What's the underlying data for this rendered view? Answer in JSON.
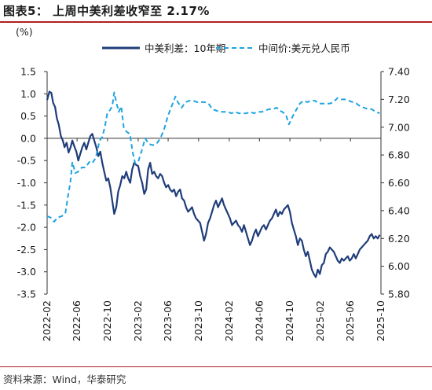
{
  "header": {
    "title": "图表5：  上周中美利差收窄至 2.17%"
  },
  "source": {
    "text": "资料来源：Wind，华泰研究"
  },
  "colors": {
    "accent_red": "#b21e24",
    "spread_line": "#1f3d7a",
    "fx_line": "#1fa3e0"
  },
  "chart_data": {
    "type": "line",
    "left_axis": {
      "unit_label": "(%)",
      "ylim": [
        -3.5,
        1.5
      ],
      "ticks": [
        "1.5",
        "1.0",
        "0.5",
        "0.0",
        "-0.5",
        "-1.0",
        "-1.5",
        "-2.0",
        "-2.5",
        "-3.0",
        "-3.5"
      ]
    },
    "right_axis": {
      "ylim": [
        5.8,
        7.4
      ],
      "ticks": [
        "7.40",
        "7.20",
        "7.00",
        "6.80",
        "6.60",
        "6.40",
        "6.20",
        "6.00",
        "5.80"
      ]
    },
    "x_axis": {
      "range": [
        "2022-02",
        "2025-10"
      ],
      "tick_labels": [
        "2022-02",
        "2022-06",
        "2022-10",
        "2023-02",
        "2023-06",
        "2023-10",
        "2024-02",
        "2024-06",
        "2024-10",
        "2025-02",
        "2025-06",
        "2025-10"
      ]
    },
    "legend": {
      "placement": "top"
    },
    "grid": false,
    "series": [
      {
        "name": "中美利差：10年期",
        "axis": "left",
        "style": "solid",
        "points": [
          [
            "2022-02-01",
            0.86
          ],
          [
            "2022-02-10",
            1.05
          ],
          [
            "2022-02-18",
            1.02
          ],
          [
            "2022-02-25",
            0.8
          ],
          [
            "2022-03-05",
            0.7
          ],
          [
            "2022-03-12",
            0.45
          ],
          [
            "2022-03-20",
            0.3
          ],
          [
            "2022-03-28",
            0.05
          ],
          [
            "2022-04-05",
            -0.05
          ],
          [
            "2022-04-12",
            -0.2
          ],
          [
            "2022-04-20",
            -0.1
          ],
          [
            "2022-04-28",
            -0.32
          ],
          [
            "2022-05-06",
            -0.2
          ],
          [
            "2022-05-13",
            -0.05
          ],
          [
            "2022-05-21",
            -0.18
          ],
          [
            "2022-05-29",
            -0.3
          ],
          [
            "2022-06-06",
            -0.5
          ],
          [
            "2022-06-14",
            -0.35
          ],
          [
            "2022-06-22",
            -0.2
          ],
          [
            "2022-06-30",
            -0.1
          ],
          [
            "2022-07-08",
            -0.25
          ],
          [
            "2022-07-16",
            -0.1
          ],
          [
            "2022-07-24",
            0.05
          ],
          [
            "2022-08-01",
            0.1
          ],
          [
            "2022-08-09",
            -0.05
          ],
          [
            "2022-08-17",
            -0.2
          ],
          [
            "2022-08-25",
            -0.4
          ],
          [
            "2022-09-02",
            -0.3
          ],
          [
            "2022-09-10",
            -0.55
          ],
          [
            "2022-09-18",
            -0.75
          ],
          [
            "2022-09-26",
            -0.95
          ],
          [
            "2022-10-04",
            -0.9
          ],
          [
            "2022-10-12",
            -1.1
          ],
          [
            "2022-10-20",
            -1.4
          ],
          [
            "2022-10-28",
            -1.7
          ],
          [
            "2022-11-05",
            -1.55
          ],
          [
            "2022-11-13",
            -1.2
          ],
          [
            "2022-11-21",
            -1.05
          ],
          [
            "2022-11-29",
            -0.85
          ],
          [
            "2022-12-07",
            -0.9
          ],
          [
            "2022-12-15",
            -0.75
          ],
          [
            "2022-12-23",
            -0.9
          ],
          [
            "2022-12-31",
            -1.0
          ],
          [
            "2023-01-08",
            -0.7
          ],
          [
            "2023-01-16",
            -0.55
          ],
          [
            "2023-01-24",
            -0.6
          ],
          [
            "2023-02-01",
            -0.62
          ],
          [
            "2023-02-09",
            -0.85
          ],
          [
            "2023-02-17",
            -1.0
          ],
          [
            "2023-02-25",
            -1.25
          ],
          [
            "2023-03-05",
            -1.15
          ],
          [
            "2023-03-13",
            -0.7
          ],
          [
            "2023-03-21",
            -0.55
          ],
          [
            "2023-03-29",
            -0.8
          ],
          [
            "2023-04-06",
            -0.75
          ],
          [
            "2023-04-14",
            -0.85
          ],
          [
            "2023-04-22",
            -0.9
          ],
          [
            "2023-04-30",
            -0.8
          ],
          [
            "2023-05-08",
            -0.85
          ],
          [
            "2023-05-16",
            -1.0
          ],
          [
            "2023-05-24",
            -1.1
          ],
          [
            "2023-06-01",
            -1.05
          ],
          [
            "2023-06-09",
            -1.15
          ],
          [
            "2023-06-17",
            -1.2
          ],
          [
            "2023-06-25",
            -1.15
          ],
          [
            "2023-07-03",
            -1.3
          ],
          [
            "2023-07-11",
            -1.2
          ],
          [
            "2023-07-19",
            -1.15
          ],
          [
            "2023-07-27",
            -1.35
          ],
          [
            "2023-08-04",
            -1.4
          ],
          [
            "2023-08-12",
            -1.55
          ],
          [
            "2023-08-20",
            -1.65
          ],
          [
            "2023-08-28",
            -1.6
          ],
          [
            "2023-09-05",
            -1.55
          ],
          [
            "2023-09-13",
            -1.7
          ],
          [
            "2023-09-21",
            -1.8
          ],
          [
            "2023-09-29",
            -1.85
          ],
          [
            "2023-10-07",
            -1.9
          ],
          [
            "2023-10-15",
            -2.1
          ],
          [
            "2023-10-23",
            -2.3
          ],
          [
            "2023-10-31",
            -2.15
          ],
          [
            "2023-11-08",
            -1.9
          ],
          [
            "2023-11-16",
            -1.8
          ],
          [
            "2023-11-24",
            -1.65
          ],
          [
            "2023-12-02",
            -1.5
          ],
          [
            "2023-12-10",
            -1.4
          ],
          [
            "2023-12-18",
            -1.55
          ],
          [
            "2023-12-26",
            -1.45
          ],
          [
            "2024-01-03",
            -1.35
          ],
          [
            "2024-01-11",
            -1.5
          ],
          [
            "2024-01-19",
            -1.6
          ],
          [
            "2024-01-27",
            -1.7
          ],
          [
            "2024-02-04",
            -1.8
          ],
          [
            "2024-02-12",
            -1.95
          ],
          [
            "2024-02-20",
            -1.9
          ],
          [
            "2024-02-28",
            -1.85
          ],
          [
            "2024-03-07",
            -1.95
          ],
          [
            "2024-03-15",
            -2.0
          ],
          [
            "2024-03-23",
            -2.1
          ],
          [
            "2024-03-31",
            -1.95
          ],
          [
            "2024-04-08",
            -2.1
          ],
          [
            "2024-04-16",
            -2.25
          ],
          [
            "2024-04-24",
            -2.4
          ],
          [
            "2024-05-02",
            -2.3
          ],
          [
            "2024-05-10",
            -2.15
          ],
          [
            "2024-05-18",
            -2.05
          ],
          [
            "2024-05-26",
            -2.2
          ],
          [
            "2024-06-03",
            -2.1
          ],
          [
            "2024-06-11",
            -2.0
          ],
          [
            "2024-06-19",
            -1.95
          ],
          [
            "2024-06-27",
            -2.05
          ],
          [
            "2024-07-05",
            -1.95
          ],
          [
            "2024-07-13",
            -1.85
          ],
          [
            "2024-07-21",
            -1.8
          ],
          [
            "2024-07-29",
            -1.7
          ],
          [
            "2024-08-06",
            -1.6
          ],
          [
            "2024-08-14",
            -1.75
          ],
          [
            "2024-08-22",
            -1.65
          ],
          [
            "2024-08-30",
            -1.7
          ],
          [
            "2024-09-07",
            -1.6
          ],
          [
            "2024-09-15",
            -1.55
          ],
          [
            "2024-09-23",
            -1.5
          ],
          [
            "2024-10-01",
            -1.65
          ],
          [
            "2024-10-09",
            -1.9
          ],
          [
            "2024-10-17",
            -2.05
          ],
          [
            "2024-10-25",
            -2.2
          ],
          [
            "2024-11-02",
            -2.4
          ],
          [
            "2024-11-10",
            -2.25
          ],
          [
            "2024-11-18",
            -2.3
          ],
          [
            "2024-11-26",
            -2.5
          ],
          [
            "2024-12-04",
            -2.65
          ],
          [
            "2024-12-12",
            -2.55
          ],
          [
            "2024-12-20",
            -2.75
          ],
          [
            "2024-12-28",
            -2.95
          ],
          [
            "2025-01-05",
            -3.05
          ],
          [
            "2025-01-13",
            -3.12
          ],
          [
            "2025-01-21",
            -2.95
          ],
          [
            "2025-01-29",
            -3.05
          ],
          [
            "2025-02-06",
            -2.85
          ],
          [
            "2025-02-14",
            -2.8
          ],
          [
            "2025-02-22",
            -2.6
          ],
          [
            "2025-03-02",
            -2.55
          ],
          [
            "2025-03-10",
            -2.45
          ],
          [
            "2025-03-18",
            -2.5
          ],
          [
            "2025-03-26",
            -2.55
          ],
          [
            "2025-04-03",
            -2.65
          ],
          [
            "2025-04-11",
            -2.75
          ],
          [
            "2025-04-19",
            -2.8
          ],
          [
            "2025-04-27",
            -2.7
          ],
          [
            "2025-05-05",
            -2.75
          ],
          [
            "2025-05-13",
            -2.7
          ],
          [
            "2025-05-21",
            -2.65
          ],
          [
            "2025-05-29",
            -2.75
          ],
          [
            "2025-06-06",
            -2.7
          ],
          [
            "2025-06-14",
            -2.6
          ],
          [
            "2025-06-22",
            -2.7
          ],
          [
            "2025-06-30",
            -2.6
          ],
          [
            "2025-07-08",
            -2.5
          ],
          [
            "2025-07-16",
            -2.45
          ],
          [
            "2025-07-24",
            -2.4
          ],
          [
            "2025-08-01",
            -2.35
          ],
          [
            "2025-08-09",
            -2.3
          ],
          [
            "2025-08-17",
            -2.2
          ],
          [
            "2025-08-25",
            -2.15
          ],
          [
            "2025-09-02",
            -2.25
          ],
          [
            "2025-09-10",
            -2.2
          ],
          [
            "2025-09-18",
            -2.25
          ],
          [
            "2025-09-26",
            -2.17
          ]
        ]
      },
      {
        "name": "中间价:美元兑人民币",
        "axis": "right",
        "style": "dashed",
        "points": [
          [
            "2022-02-01",
            6.36
          ],
          [
            "2022-02-15",
            6.35
          ],
          [
            "2022-03-01",
            6.32
          ],
          [
            "2022-03-15",
            6.35
          ],
          [
            "2022-04-01",
            6.36
          ],
          [
            "2022-04-15",
            6.38
          ],
          [
            "2022-04-25",
            6.5
          ],
          [
            "2022-05-05",
            6.6
          ],
          [
            "2022-05-13",
            6.75
          ],
          [
            "2022-05-25",
            6.67
          ],
          [
            "2022-06-05",
            6.68
          ],
          [
            "2022-06-20",
            6.71
          ],
          [
            "2022-07-05",
            6.71
          ],
          [
            "2022-07-20",
            6.75
          ],
          [
            "2022-08-01",
            6.74
          ],
          [
            "2022-08-15",
            6.78
          ],
          [
            "2022-08-30",
            6.9
          ],
          [
            "2022-09-10",
            6.93
          ],
          [
            "2022-09-20",
            7.0
          ],
          [
            "2022-09-30",
            7.1
          ],
          [
            "2022-10-10",
            7.12
          ],
          [
            "2022-10-20",
            7.15
          ],
          [
            "2022-10-28",
            7.25
          ],
          [
            "2022-11-05",
            7.18
          ],
          [
            "2022-11-15",
            7.11
          ],
          [
            "2022-11-25",
            7.15
          ],
          [
            "2022-12-05",
            7.0
          ],
          [
            "2022-12-15",
            6.97
          ],
          [
            "2022-12-30",
            6.95
          ],
          [
            "2023-01-10",
            6.82
          ],
          [
            "2023-01-20",
            6.74
          ],
          [
            "2023-02-01",
            6.75
          ],
          [
            "2023-02-15",
            6.83
          ],
          [
            "2023-03-01",
            6.92
          ],
          [
            "2023-03-15",
            6.88
          ],
          [
            "2023-03-31",
            6.87
          ],
          [
            "2023-04-15",
            6.88
          ],
          [
            "2023-05-01",
            6.92
          ],
          [
            "2023-05-15",
            6.98
          ],
          [
            "2023-05-31",
            7.08
          ],
          [
            "2023-06-15",
            7.15
          ],
          [
            "2023-06-30",
            7.22
          ],
          [
            "2023-07-10",
            7.18
          ],
          [
            "2023-07-25",
            7.14
          ],
          [
            "2023-08-10",
            7.18
          ],
          [
            "2023-08-25",
            7.19
          ],
          [
            "2023-09-10",
            7.19
          ],
          [
            "2023-09-25",
            7.18
          ],
          [
            "2023-10-10",
            7.18
          ],
          [
            "2023-10-25",
            7.18
          ],
          [
            "2023-11-10",
            7.17
          ],
          [
            "2023-11-25",
            7.13
          ],
          [
            "2023-12-10",
            7.12
          ],
          [
            "2023-12-25",
            7.11
          ],
          [
            "2024-01-10",
            7.11
          ],
          [
            "2024-01-25",
            7.11
          ],
          [
            "2024-02-10",
            7.1
          ],
          [
            "2024-02-25",
            7.11
          ],
          [
            "2024-03-10",
            7.1
          ],
          [
            "2024-03-25",
            7.1
          ],
          [
            "2024-04-10",
            7.1
          ],
          [
            "2024-04-25",
            7.11
          ],
          [
            "2024-05-10",
            7.1
          ],
          [
            "2024-05-25",
            7.11
          ],
          [
            "2024-06-10",
            7.11
          ],
          [
            "2024-06-25",
            7.12
          ],
          [
            "2024-07-10",
            7.13
          ],
          [
            "2024-07-25",
            7.13
          ],
          [
            "2024-08-10",
            7.14
          ],
          [
            "2024-08-20",
            7.12
          ],
          [
            "2024-09-01",
            7.11
          ],
          [
            "2024-09-15",
            7.09
          ],
          [
            "2024-09-27",
            7.02
          ],
          [
            "2024-10-10",
            7.07
          ],
          [
            "2024-10-25",
            7.12
          ],
          [
            "2024-11-10",
            7.17
          ],
          [
            "2024-11-25",
            7.19
          ],
          [
            "2024-12-10",
            7.18
          ],
          [
            "2024-12-25",
            7.19
          ],
          [
            "2025-01-10",
            7.19
          ],
          [
            "2025-01-25",
            7.17
          ],
          [
            "2025-02-10",
            7.17
          ],
          [
            "2025-02-25",
            7.17
          ],
          [
            "2025-03-10",
            7.17
          ],
          [
            "2025-03-25",
            7.18
          ],
          [
            "2025-04-10",
            7.21
          ],
          [
            "2025-04-25",
            7.2
          ],
          [
            "2025-05-10",
            7.2
          ],
          [
            "2025-05-25",
            7.19
          ],
          [
            "2025-06-10",
            7.18
          ],
          [
            "2025-06-25",
            7.17
          ],
          [
            "2025-07-10",
            7.15
          ],
          [
            "2025-07-25",
            7.14
          ],
          [
            "2025-08-10",
            7.13
          ],
          [
            "2025-08-25",
            7.13
          ],
          [
            "2025-09-10",
            7.11
          ],
          [
            "2025-09-26",
            7.1
          ]
        ]
      }
    ]
  }
}
